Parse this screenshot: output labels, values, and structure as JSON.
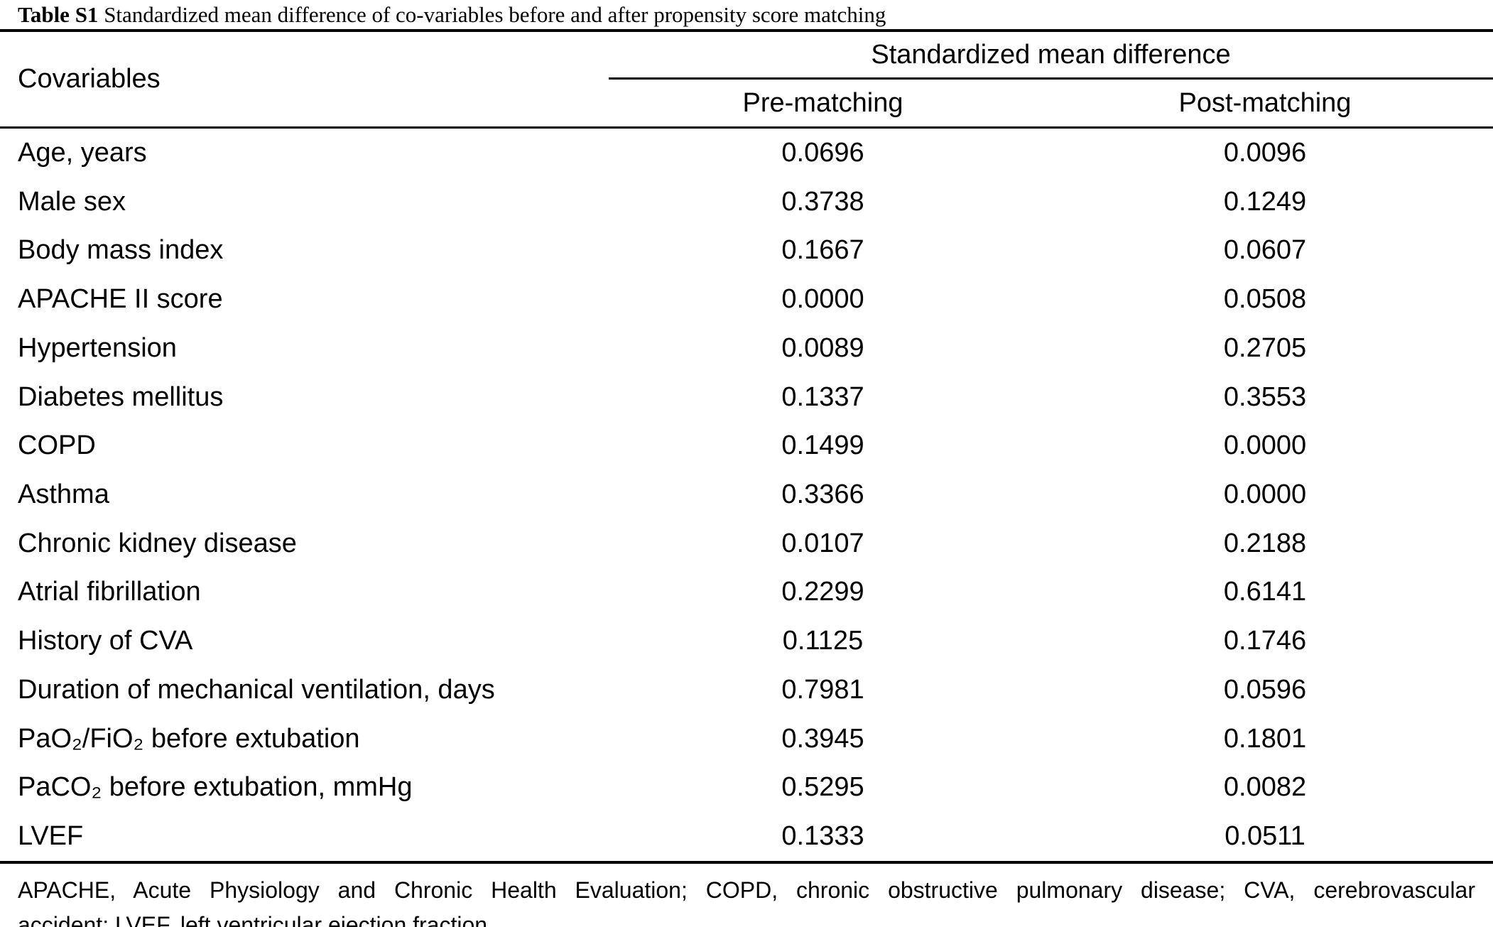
{
  "title": {
    "label": "Table S1",
    "text": "Standardized mean difference of co-variables before and after propensity score matching"
  },
  "table": {
    "col1_header": "Covariables",
    "group_header": "Standardized mean difference",
    "sub_headers": {
      "pre": "Pre-matching",
      "post": "Post-matching"
    },
    "rows": [
      {
        "covariable": "Age, years",
        "pre": "0.0696",
        "post": "0.0096"
      },
      {
        "covariable": "Male sex",
        "pre": "0.3738",
        "post": "0.1249"
      },
      {
        "covariable": "Body mass index",
        "pre": "0.1667",
        "post": "0.0607"
      },
      {
        "covariable": "APACHE II score",
        "pre": "0.0000",
        "post": "0.0508"
      },
      {
        "covariable": "Hypertension",
        "pre": "0.0089",
        "post": "0.2705"
      },
      {
        "covariable": "Diabetes mellitus",
        "pre": "0.1337",
        "post": "0.3553"
      },
      {
        "covariable": "COPD",
        "pre": "0.1499",
        "post": "0.0000"
      },
      {
        "covariable": "Asthma",
        "pre": "0.3366",
        "post": "0.0000"
      },
      {
        "covariable": "Chronic kidney disease",
        "pre": "0.0107",
        "post": "0.2188"
      },
      {
        "covariable": "Atrial fibrillation",
        "pre": "0.2299",
        "post": "0.6141"
      },
      {
        "covariable": "History of CVA",
        "pre": "0.1125",
        "post": "0.1746"
      },
      {
        "covariable": "Duration of mechanical ventilation, days",
        "pre": "0.7981",
        "post": "0.0596"
      },
      {
        "covariable": "PaO₂/FiO₂ before extubation",
        "pre": "0.3945",
        "post": "0.1801"
      },
      {
        "covariable": "PaCO₂ before extubation, mmHg",
        "pre": "0.5295",
        "post": "0.0082"
      },
      {
        "covariable": "LVEF",
        "pre": "0.1333",
        "post": "0.0511"
      }
    ]
  },
  "footnote": {
    "line1": "APACHE, Acute Physiology and Chronic Health Evaluation; COPD, chronic obstructive pulmonary disease; CVA, cerebrovascular",
    "line2": "accident; LVEF, left ventricular ejection fraction."
  },
  "colors": {
    "background": "#ffffff",
    "text": "#000000",
    "rule": "#000000"
  },
  "chart_data": {
    "type": "table",
    "title": "Table S1 Standardized mean difference of co-variables before and after propensity score matching",
    "columns": [
      "Covariables",
      "Standardized mean difference — Pre-matching",
      "Standardized mean difference — Post-matching"
    ],
    "rows": [
      [
        "Age, years",
        0.0696,
        0.0096
      ],
      [
        "Male sex",
        0.3738,
        0.1249
      ],
      [
        "Body mass index",
        0.1667,
        0.0607
      ],
      [
        "APACHE II score",
        0.0,
        0.0508
      ],
      [
        "Hypertension",
        0.0089,
        0.2705
      ],
      [
        "Diabetes mellitus",
        0.1337,
        0.3553
      ],
      [
        "COPD",
        0.1499,
        0.0
      ],
      [
        "Asthma",
        0.3366,
        0.0
      ],
      [
        "Chronic kidney disease",
        0.0107,
        0.2188
      ],
      [
        "Atrial fibrillation",
        0.2299,
        0.6141
      ],
      [
        "History of CVA",
        0.1125,
        0.1746
      ],
      [
        "Duration of mechanical ventilation, days",
        0.7981,
        0.0596
      ],
      [
        "PaO₂/FiO₂ before extubation",
        0.3945,
        0.1801
      ],
      [
        "PaCO₂ before extubation, mmHg",
        0.5295,
        0.0082
      ],
      [
        "LVEF",
        0.1333,
        0.0511
      ]
    ]
  }
}
